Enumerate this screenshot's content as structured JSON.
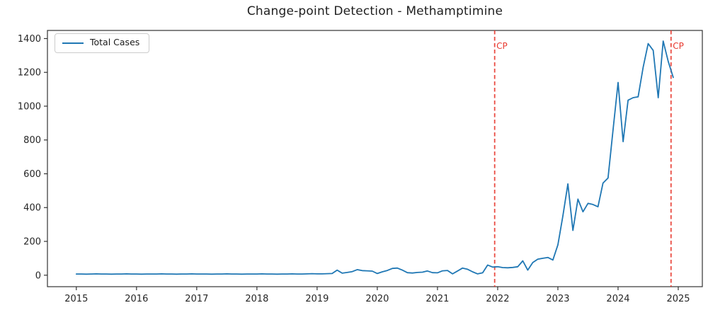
{
  "title": "Change-point Detection - Methamptimine",
  "colors": {
    "line": "#1f77b4",
    "changepoint": "#e8392f",
    "axis": "#333333",
    "tick_text": "#262626"
  },
  "chart_data": {
    "type": "line",
    "title": "Change-point Detection - Methamptimine",
    "xlabel": "",
    "ylabel": "",
    "grid": false,
    "legend_position": "upper left",
    "xlim": [
      2014.52,
      2025.4
    ],
    "ylim": [
      -68,
      1448
    ],
    "x_ticks": [
      2015,
      2016,
      2017,
      2018,
      2019,
      2020,
      2021,
      2022,
      2023,
      2024,
      2025
    ],
    "y_ticks": [
      0,
      200,
      400,
      600,
      800,
      1000,
      1200,
      1400
    ],
    "series": [
      {
        "name": "Total Cases",
        "color": "#1f77b4",
        "x_start": 2015.0,
        "x_step": 0.0833333,
        "values": [
          7,
          7,
          6,
          7,
          8,
          7,
          7,
          6,
          7,
          7,
          8,
          7,
          7,
          6,
          7,
          7,
          7,
          8,
          7,
          7,
          6,
          7,
          7,
          8,
          7,
          7,
          7,
          6,
          7,
          7,
          8,
          7,
          7,
          6,
          7,
          7,
          7,
          8,
          7,
          7,
          6,
          7,
          7,
          8,
          7,
          7,
          8,
          9,
          8,
          8,
          9,
          10,
          30,
          12,
          16,
          21,
          33,
          27,
          26,
          24,
          10,
          20,
          28,
          40,
          42,
          30,
          15,
          13,
          16,
          18,
          25,
          15,
          14,
          26,
          28,
          8,
          25,
          42,
          35,
          20,
          8,
          14,
          60,
          48,
          50,
          45,
          44,
          46,
          50,
          85,
          30,
          75,
          95,
          100,
          105,
          90,
          180,
          350,
          540,
          265,
          450,
          375,
          425,
          418,
          405,
          545,
          575,
          860,
          1140,
          790,
          1035,
          1050,
          1055,
          1230,
          1370,
          1330,
          1050,
          1385,
          1265,
          1170
        ]
      }
    ],
    "annotations": [
      {
        "type": "vline",
        "x": 2021.95,
        "label": "CP",
        "color": "#e8392f",
        "linestyle": "dashed"
      },
      {
        "type": "vline",
        "x": 2024.88,
        "label": "CP",
        "color": "#e8392f",
        "linestyle": "dashed"
      }
    ]
  }
}
